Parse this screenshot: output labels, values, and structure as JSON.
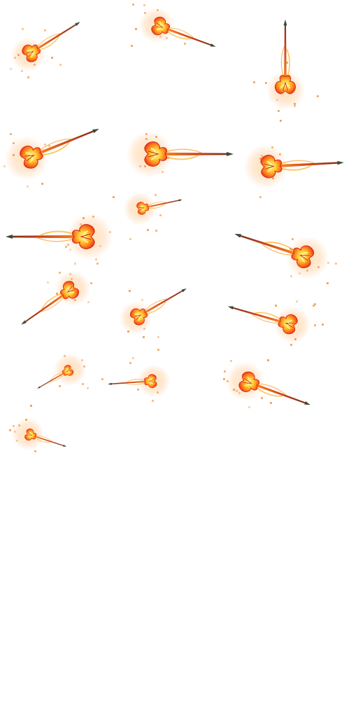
{
  "sheet": {
    "background": "#ffffff",
    "sprite_kind": "flaming-staff-icon",
    "palette": {
      "flame_core": "#ffe35a",
      "flame_mid": "#ff8a1c",
      "flame_edge": "#e3271b",
      "shaft": "#b8431d",
      "tip": "#3f4a3a",
      "spark": "#f39a45"
    },
    "frame_count": 16
  }
}
